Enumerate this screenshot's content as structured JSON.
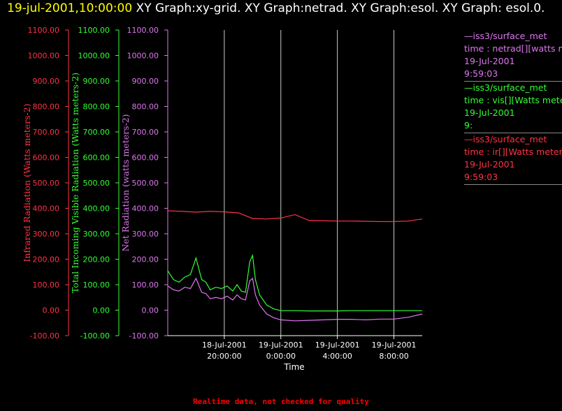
{
  "header": {
    "timestamp": "19-jul-2001,10:00:00",
    "title": " XY Graph:xy-grid.  XY Graph:netrad.  XY Graph:esol.  XY Graph: esol.0."
  },
  "chart_data": {
    "type": "line",
    "xlabel": "Time",
    "x_ticks": [
      "18-Jul-2001 20:00:00",
      "19-Jul-2001 0:00:00",
      "19-Jul-2001 4:00:00",
      "19-Jul-2001 8:00:00"
    ],
    "x_range": [
      "18-Jul-2001 16:00:00",
      "19-Jul-2001 10:00:00"
    ],
    "x_data_range": [
      "18-Jul-2001 16:00:00",
      "19-Jul-2001 10:00:00"
    ],
    "grid": true,
    "axes": [
      {
        "id": "ir",
        "label": "Infrared Radiation (Watts meters-2)",
        "ylim": [
          -100,
          1100
        ],
        "ticks": [
          "1100.00",
          "1000.00",
          "900.00",
          "800.00",
          "700.00",
          "600.00",
          "500.00",
          "400.00",
          "300.00",
          "200.00",
          "100.00",
          "0.00",
          "-100.00"
        ],
        "color": "#ff3344"
      },
      {
        "id": "vis",
        "label": "Total Incoming Visible Radiation (Watts meters-2)",
        "ylim": [
          -100,
          1100
        ],
        "ticks": [
          "1100.00",
          "1000.00",
          "900.00",
          "800.00",
          "700.00",
          "600.00",
          "500.00",
          "400.00",
          "300.00",
          "200.00",
          "100.00",
          "0.00",
          "-100.00"
        ],
        "color": "#33ff33"
      },
      {
        "id": "netrad",
        "label": "Net Radiation (watts meters-2)",
        "ylim": [
          -100,
          1100
        ],
        "ticks": [
          "1100.00",
          "1000.00",
          "900.00",
          "800.00",
          "700.00",
          "600.00",
          "500.00",
          "400.00",
          "300.00",
          "200.00",
          "100.00",
          "0.00",
          "-100.00"
        ],
        "color": "#dd77ee"
      }
    ],
    "series": [
      {
        "color": "#ff3344",
        "x": [
          0,
          1,
          2,
          3,
          4,
          5,
          6,
          7,
          8,
          9,
          10,
          11,
          12,
          13,
          14,
          15,
          16,
          17,
          18
        ],
        "values": [
          390,
          388,
          385,
          388,
          386,
          382,
          360,
          358,
          362,
          375,
          352,
          351,
          350,
          350,
          349,
          348,
          348,
          350,
          358
        ]
      },
      {
        "color": "#33ff33",
        "x": [
          0,
          0.4,
          0.8,
          1.2,
          1.6,
          2.0,
          2.4,
          2.7,
          3.0,
          3.4,
          3.8,
          4.2,
          4.6,
          4.9,
          5.2,
          5.5,
          5.8,
          6.0,
          6.2,
          6.5,
          7.0,
          7.5,
          8.0,
          9,
          10,
          11,
          12,
          13,
          14,
          15,
          16,
          17,
          18
        ],
        "values": [
          155,
          120,
          110,
          130,
          140,
          205,
          120,
          110,
          80,
          90,
          85,
          95,
          75,
          100,
          75,
          70,
          190,
          215,
          120,
          60,
          20,
          5,
          -2,
          -2,
          -3,
          -3,
          -3,
          -2,
          -2,
          -2,
          -2,
          -2,
          -2
        ]
      },
      {
        "color": "#dd77ee",
        "x": [
          0,
          0.4,
          0.8,
          1.2,
          1.6,
          2.0,
          2.4,
          2.7,
          3.0,
          3.4,
          3.8,
          4.2,
          4.6,
          4.9,
          5.2,
          5.5,
          5.8,
          6.0,
          6.2,
          6.5,
          7.0,
          7.5,
          8.0,
          9,
          10,
          11,
          12,
          13,
          14,
          15,
          16,
          17,
          18
        ],
        "values": [
          95,
          80,
          75,
          90,
          85,
          125,
          70,
          65,
          45,
          50,
          45,
          55,
          40,
          60,
          45,
          40,
          115,
          125,
          60,
          20,
          -15,
          -30,
          -38,
          -42,
          -40,
          -38,
          -36,
          -36,
          -38,
          -35,
          -35,
          -28,
          -15
        ]
      }
    ]
  },
  "legend": [
    {
      "color": "#dd77ee",
      "lines": [
        "—iss3/surface_met",
        "time : netrad[][watts me",
        "19-Jul-2001",
        "9:59:03"
      ]
    },
    {
      "color": "#33ff33",
      "lines": [
        "—iss3/surface_met",
        "time : vis[][Watts meter",
        "19-Jul-2001",
        "9:"
      ]
    },
    {
      "color": "#ff3344",
      "lines": [
        "—iss3/surface_met",
        "time : ir[][Watts meters",
        "19-Jul-2001",
        "9:59:03"
      ]
    }
  ],
  "footer": "Realtime data, not checked for quality"
}
